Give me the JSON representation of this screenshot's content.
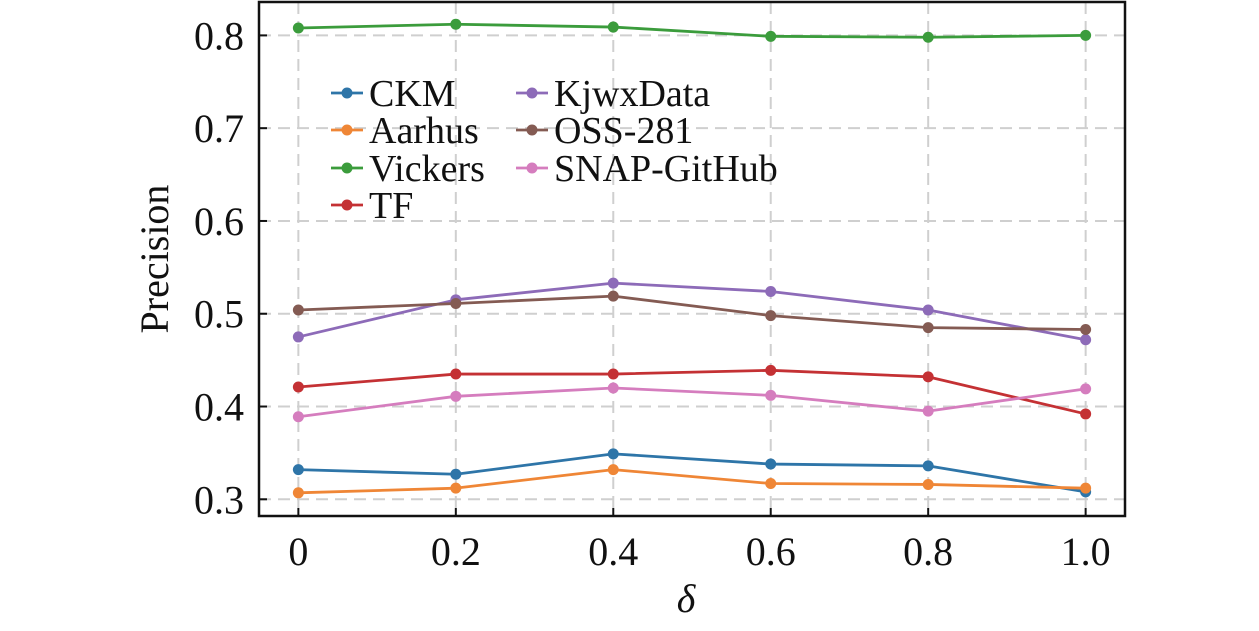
{
  "chart_data": {
    "type": "line",
    "xlabel": "δ",
    "ylabel": "Precision",
    "x": [
      0,
      0.2,
      0.4,
      0.6,
      0.8,
      1.0
    ],
    "x_tick_labels": [
      "0",
      "0.2",
      "0.4",
      "0.6",
      "0.8",
      "1.0"
    ],
    "y_ticks": [
      0.3,
      0.4,
      0.5,
      0.6,
      0.7,
      0.8
    ],
    "y_tick_labels": [
      "0.3",
      "0.4",
      "0.5",
      "0.6",
      "0.7",
      "0.8"
    ],
    "xlim": [
      -0.05,
      1.05
    ],
    "ylim": [
      0.282,
      0.836
    ],
    "grid": true,
    "legend_position": "top-left",
    "series": [
      {
        "name": "CKM",
        "color": "#2e75a8",
        "values": [
          0.332,
          0.327,
          0.349,
          0.338,
          0.336,
          0.308
        ]
      },
      {
        "name": "Aarhus",
        "color": "#ef8636",
        "values": [
          0.307,
          0.312,
          0.332,
          0.317,
          0.316,
          0.312
        ]
      },
      {
        "name": "Vickers",
        "color": "#3b9c3c",
        "values": [
          0.808,
          0.812,
          0.809,
          0.799,
          0.798,
          0.8
        ]
      },
      {
        "name": "TF",
        "color": "#c43134",
        "values": [
          0.421,
          0.435,
          0.435,
          0.439,
          0.432,
          0.392
        ]
      },
      {
        "name": "KjwxData",
        "color": "#8d6bb8",
        "values": [
          0.475,
          0.515,
          0.533,
          0.524,
          0.504,
          0.472
        ]
      },
      {
        "name": "OSS-281",
        "color": "#845b53",
        "values": [
          0.504,
          0.511,
          0.519,
          0.498,
          0.485,
          0.483
        ]
      },
      {
        "name": "SNAP-GitHub",
        "color": "#d57dbe",
        "values": [
          0.389,
          0.411,
          0.42,
          0.412,
          0.395,
          0.419
        ]
      }
    ]
  }
}
